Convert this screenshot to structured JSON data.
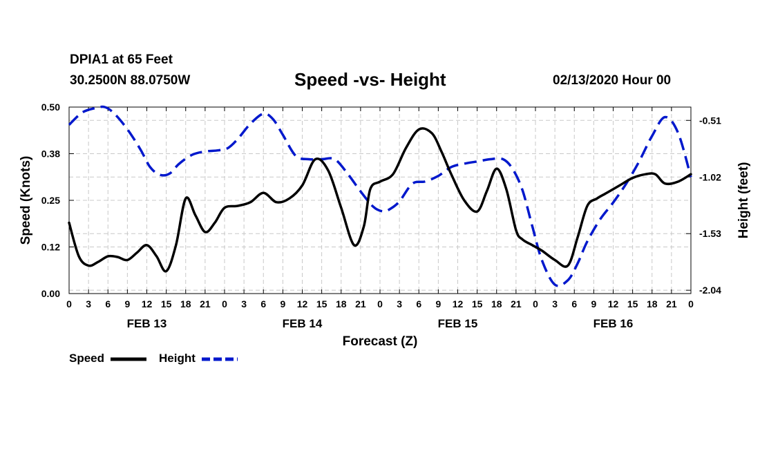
{
  "header": {
    "station": "DPIA1 at 65 Feet",
    "coords": "30.2500N 88.0750W",
    "title": "Speed -vs- Height",
    "stamp": "02/13/2020 Hour 00"
  },
  "legend": {
    "speed": "Speed",
    "height": "Height"
  },
  "chart_data": {
    "type": "line",
    "xlabel": "Forecast (Z)",
    "ylabel": "Speed (Knots)",
    "y2label": "Height (feet)",
    "x_hours_range": [
      0,
      96
    ],
    "x_tick_step_hours": 3,
    "x_tick_labels": [
      "0",
      "3",
      "6",
      "9",
      "12",
      "15",
      "18",
      "21",
      "0",
      "3",
      "6",
      "9",
      "12",
      "15",
      "18",
      "21",
      "0",
      "3",
      "6",
      "9",
      "12",
      "15",
      "18",
      "21",
      "0",
      "3",
      "6",
      "9",
      "12",
      "15",
      "18",
      "21",
      "0"
    ],
    "day_labels": [
      {
        "label": "FEB 13",
        "hour": 12
      },
      {
        "label": "FEB 14",
        "hour": 36
      },
      {
        "label": "FEB 15",
        "hour": 60
      },
      {
        "label": "FEB 16",
        "hour": 84
      }
    ],
    "ylim": [
      0,
      0.5
    ],
    "y_ticks": [
      0.0,
      0.125,
      0.25,
      0.375,
      0.5
    ],
    "y_tick_labels": [
      "0.00",
      "0.12",
      "0.25",
      "0.38",
      "0.50"
    ],
    "y2lim": [
      -2.07,
      -0.39
    ],
    "y2_ticks": [
      -2.04,
      -1.53,
      -1.02,
      -0.51
    ],
    "y2_tick_labels": [
      "-2.04",
      "-1.53",
      "-1.02",
      "-0.51"
    ],
    "grid": true,
    "legend_position": "bottom-left",
    "series": [
      {
        "name": "Speed",
        "axis": "left",
        "color": "#000000",
        "style": "solid",
        "x": [
          0,
          1.5,
          3,
          4.5,
          6,
          7.5,
          9,
          10.5,
          12,
          13.5,
          15,
          16.5,
          18,
          19.5,
          21,
          22.5,
          24,
          26,
          28,
          30,
          32,
          34,
          36,
          38,
          40,
          42,
          44,
          45.5,
          46.5,
          48,
          50,
          52,
          54,
          56,
          57.5,
          59,
          61,
          63,
          64.5,
          66,
          67.5,
          69,
          70,
          71.5,
          73,
          75,
          77,
          78.5,
          80,
          81.5,
          83,
          85,
          87,
          89,
          90.5,
          92,
          94,
          96
        ],
        "values": [
          0.19,
          0.1,
          0.075,
          0.085,
          0.1,
          0.098,
          0.09,
          0.11,
          0.13,
          0.1,
          0.06,
          0.13,
          0.255,
          0.21,
          0.165,
          0.19,
          0.23,
          0.235,
          0.245,
          0.27,
          0.245,
          0.255,
          0.29,
          0.36,
          0.33,
          0.23,
          0.13,
          0.18,
          0.28,
          0.3,
          0.32,
          0.39,
          0.44,
          0.43,
          0.38,
          0.32,
          0.25,
          0.22,
          0.275,
          0.335,
          0.28,
          0.17,
          0.145,
          0.13,
          0.115,
          0.09,
          0.075,
          0.15,
          0.235,
          0.255,
          0.27,
          0.29,
          0.31,
          0.32,
          0.32,
          0.295,
          0.3,
          0.32
        ]
      },
      {
        "name": "Height",
        "axis": "right",
        "color": "#0018cc",
        "style": "dashed",
        "x": [
          0,
          2,
          4,
          5.5,
          7,
          9,
          11,
          12.5,
          14,
          15.5,
          17,
          19,
          21,
          23,
          24.5,
          26,
          28,
          30,
          31.5,
          33,
          35,
          37,
          39,
          41,
          43,
          45,
          47,
          48.5,
          49.5,
          51,
          53,
          55,
          57,
          59,
          61,
          63,
          65,
          67,
          68.5,
          70,
          71.5,
          73,
          75,
          77,
          78.5,
          80,
          82,
          84,
          86,
          88,
          90,
          92,
          94,
          96
        ],
        "values": [
          -0.55,
          -0.44,
          -0.4,
          -0.39,
          -0.45,
          -0.59,
          -0.77,
          -0.93,
          -1.0,
          -0.99,
          -0.9,
          -0.82,
          -0.79,
          -0.78,
          -0.76,
          -0.68,
          -0.54,
          -0.45,
          -0.5,
          -0.64,
          -0.83,
          -0.86,
          -0.86,
          -0.86,
          -0.99,
          -1.15,
          -1.29,
          -1.33,
          -1.31,
          -1.24,
          -1.08,
          -1.06,
          -1.01,
          -0.93,
          -0.9,
          -0.88,
          -0.86,
          -0.86,
          -0.95,
          -1.14,
          -1.46,
          -1.77,
          -1.99,
          -1.95,
          -1.8,
          -1.6,
          -1.4,
          -1.25,
          -1.08,
          -0.88,
          -0.65,
          -0.48,
          -0.62,
          -1.02
        ]
      }
    ]
  }
}
